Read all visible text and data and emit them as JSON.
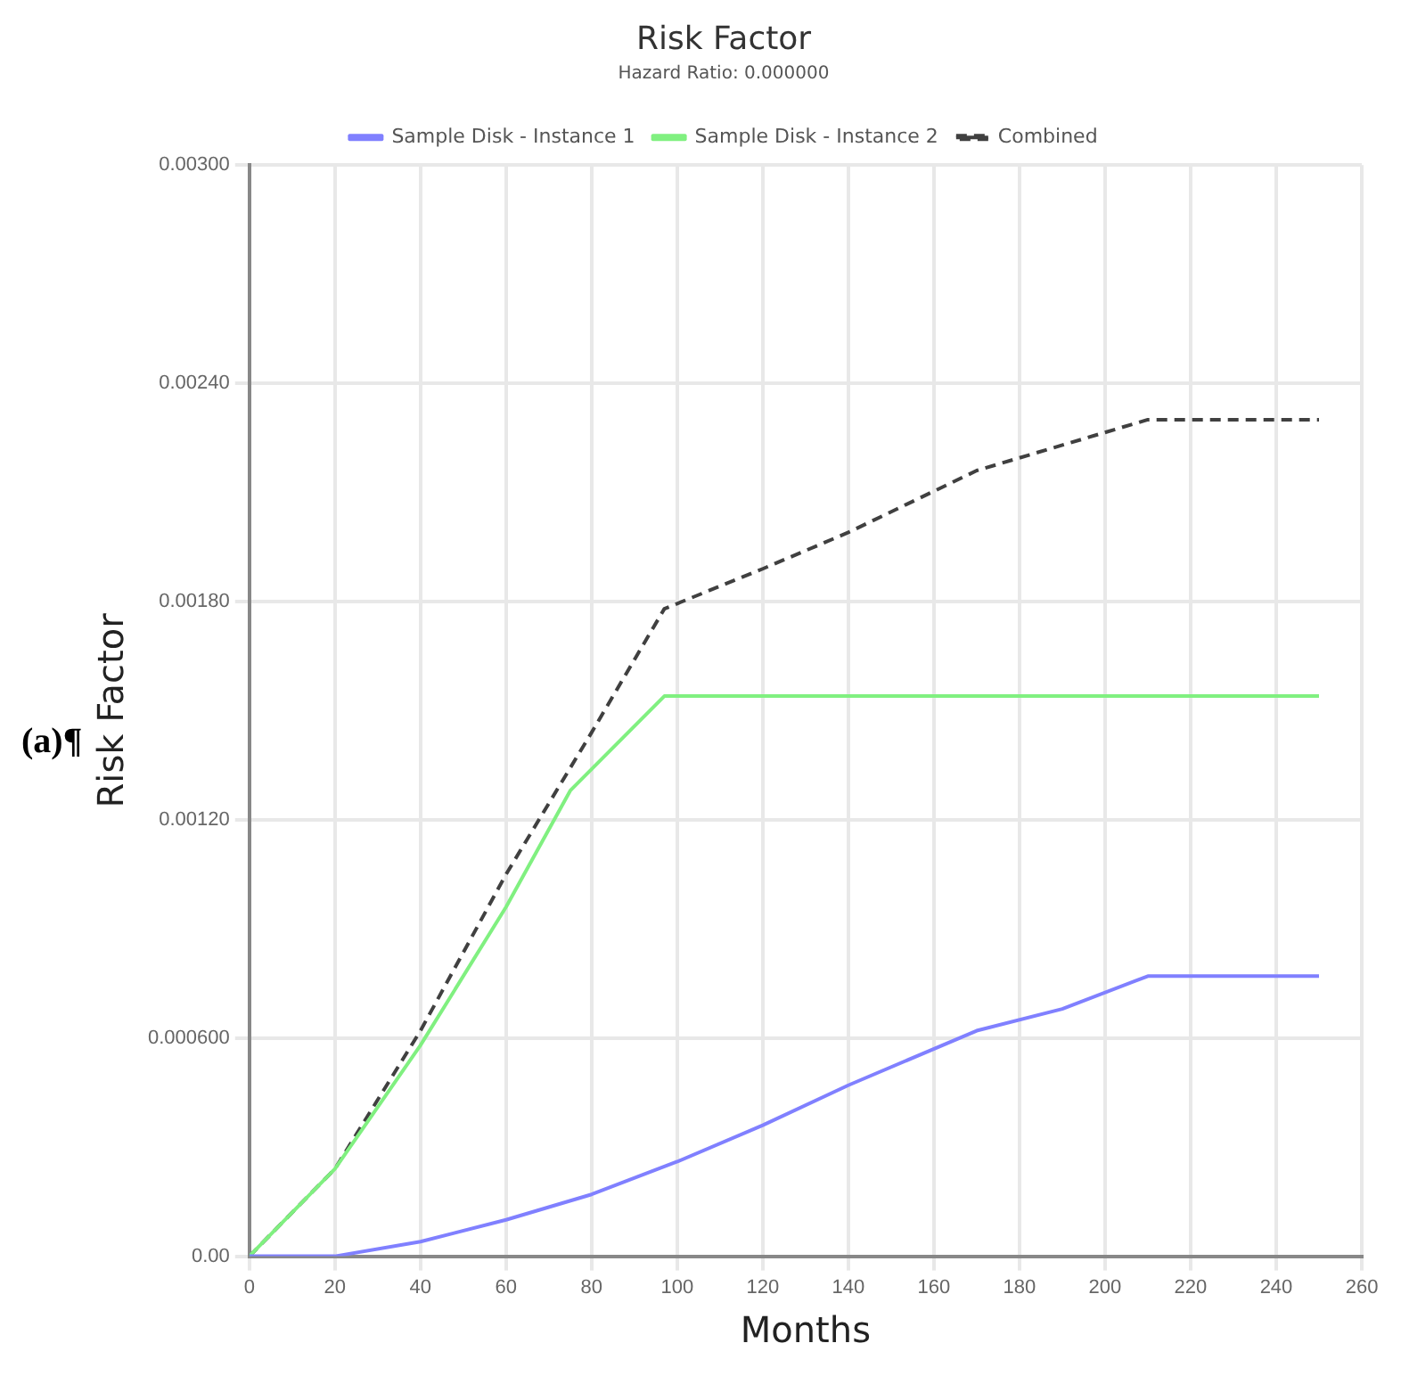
{
  "chart_data": {
    "type": "line",
    "title": "Risk Factor",
    "subtitle": "Hazard Ratio: 0.000000",
    "xlabel": "Months",
    "ylabel": "Risk Factor",
    "annotations": [
      "(a)¶"
    ],
    "xlim": [
      0,
      260
    ],
    "xticks": [
      0,
      20,
      40,
      60,
      80,
      100,
      120,
      140,
      160,
      180,
      200,
      220,
      240,
      260
    ],
    "ylim": [
      0,
      0.003
    ],
    "yticks": [
      {
        "value": 0,
        "label": "0.00"
      },
      {
        "value": 0.0006,
        "label": "0.000600"
      },
      {
        "value": 0.0012,
        "label": "0.00120"
      },
      {
        "value": 0.0018,
        "label": "0.00180"
      },
      {
        "value": 0.0024,
        "label": "0.00240"
      },
      {
        "value": 0.003,
        "label": "0.00300"
      }
    ],
    "grid": true,
    "legend": "top",
    "marker": "none",
    "series": [
      {
        "name": "Sample Disk - Instance 1",
        "color": "#8080ff",
        "x": [
          0,
          20,
          40,
          60,
          80,
          100,
          120,
          140,
          170,
          190,
          210,
          250
        ],
        "values": [
          0,
          0,
          4e-05,
          0.0001,
          0.00017,
          0.00026,
          0.00036,
          0.00047,
          0.00062,
          0.00068,
          0.00077,
          0.00077
        ]
      },
      {
        "name": "Sample Disk - Instance 2",
        "color": "#80f080",
        "x": [
          0,
          20,
          40,
          60,
          75,
          97,
          250
        ],
        "values": [
          0,
          0.00024,
          0.00058,
          0.00096,
          0.00128,
          0.00154,
          0.00154
        ]
      },
      {
        "name": "Combined",
        "color": "#404040",
        "line_style": "dashed",
        "x": [
          0,
          20,
          40,
          60,
          80,
          97,
          120,
          140,
          170,
          210,
          250
        ],
        "values": [
          0,
          0.00024,
          0.00062,
          0.00105,
          0.00144,
          0.00178,
          0.00189,
          0.00199,
          0.00216,
          0.0023,
          0.0023
        ]
      }
    ]
  }
}
